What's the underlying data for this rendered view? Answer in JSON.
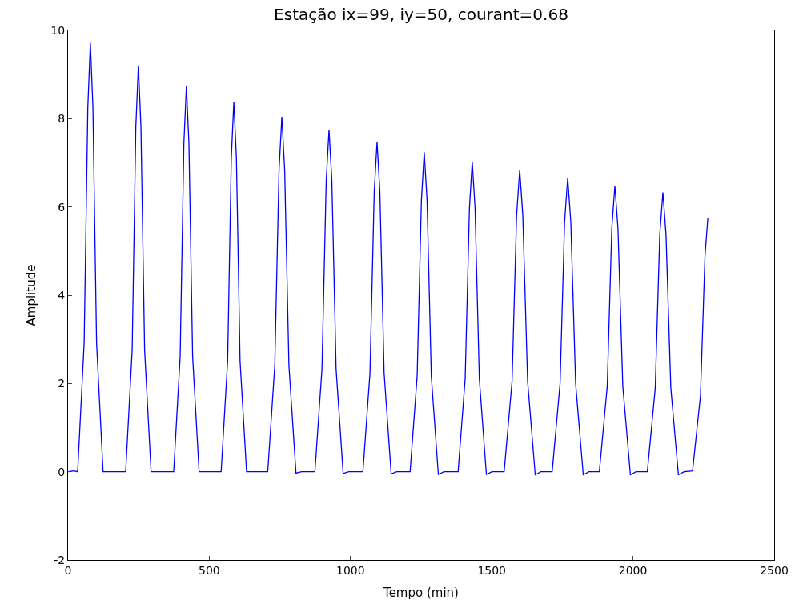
{
  "chart_data": {
    "type": "line",
    "title": "Estação ix=99, iy=50, courant=0.68",
    "xlabel": "Tempo (min)",
    "ylabel": "Amplitude",
    "xlim": [
      0,
      2500
    ],
    "ylim": [
      -2,
      10
    ],
    "xticks": [
      0,
      500,
      1000,
      1500,
      2000,
      2500
    ],
    "yticks": [
      -2,
      0,
      2,
      4,
      6,
      8,
      10
    ],
    "marker": "none",
    "line_style": "solid",
    "series": [
      {
        "color": "#0000ff",
        "x": [
          0,
          20,
          34,
          57,
          70,
          79,
          88,
          101,
          124,
          204,
          227,
          240,
          249,
          258,
          271,
          294,
          374,
          397,
          410,
          419,
          428,
          441,
          464,
          542,
          565,
          578,
          587,
          596,
          609,
          632,
          707,
          732,
          747,
          757,
          767,
          782,
          807,
          827,
          874,
          899,
          914,
          924,
          934,
          949,
          974,
          994,
          1044,
          1069,
          1084,
          1094,
          1104,
          1119,
          1144,
          1164,
          1211,
          1236,
          1251,
          1261,
          1271,
          1286,
          1311,
          1331,
          1381,
          1406,
          1421,
          1431,
          1441,
          1456,
          1481,
          1501,
          1544,
          1572,
          1588,
          1599,
          1610,
          1627,
          1654,
          1674,
          1714,
          1742,
          1758,
          1769,
          1780,
          1797,
          1824,
          1844,
          1881,
          1909,
          1925,
          1936,
          1947,
          1964,
          1991,
          2011,
          2051,
          2079,
          2095,
          2106,
          2117,
          2134,
          2161,
          2181,
          2211,
          2239,
          2255,
          2265
        ],
        "values": [
          0,
          0.02,
          0,
          2.92,
          8.26,
          9.72,
          8.26,
          2.92,
          0,
          0,
          2.76,
          7.82,
          9.2,
          7.82,
          2.76,
          0,
          0,
          2.62,
          7.43,
          8.74,
          7.43,
          2.62,
          0,
          0,
          2.51,
          7.12,
          8.38,
          7.12,
          2.51,
          0,
          0,
          2.41,
          6.83,
          8.04,
          6.83,
          2.41,
          -0.03,
          0,
          0,
          2.33,
          6.59,
          7.75,
          6.59,
          2.33,
          -0.04,
          0,
          0,
          2.24,
          6.35,
          7.47,
          6.35,
          2.24,
          -0.05,
          0,
          0,
          2.17,
          6.15,
          7.24,
          6.15,
          2.17,
          -0.06,
          0,
          0,
          2.11,
          5.97,
          7.02,
          5.97,
          2.11,
          -0.06,
          0,
          0,
          2.05,
          5.81,
          6.84,
          5.81,
          2.05,
          -0.07,
          0,
          0,
          2.0,
          5.66,
          6.66,
          5.66,
          2.0,
          -0.07,
          0,
          0,
          1.94,
          5.51,
          6.48,
          5.51,
          1.94,
          -0.07,
          0,
          0,
          1.9,
          5.38,
          6.33,
          5.38,
          1.9,
          -0.07,
          0,
          0.02,
          1.72,
          4.88,
          5.74
        ]
      }
    ]
  }
}
